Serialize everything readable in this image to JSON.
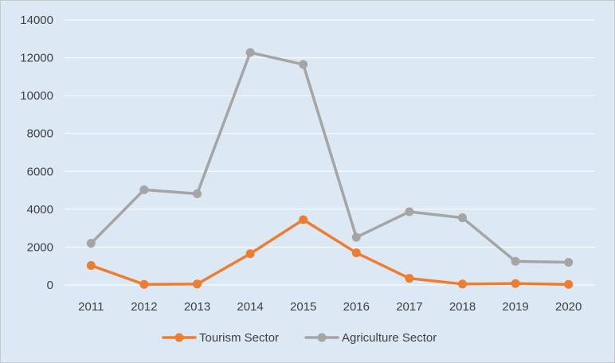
{
  "chart_data": {
    "type": "line",
    "title": "",
    "xlabel": "",
    "ylabel": "",
    "categories": [
      "2011",
      "2012",
      "2013",
      "2014",
      "2015",
      "2016",
      "2017",
      "2018",
      "2019",
      "2020"
    ],
    "ylim": [
      0,
      14000
    ],
    "yticks": [
      0,
      2000,
      4000,
      6000,
      8000,
      10000,
      12000,
      14000
    ],
    "ytick_labels": [
      "0",
      "2000",
      "4000",
      "6000",
      "8000",
      "10000",
      "12000",
      "14000"
    ],
    "grid": "horizontal",
    "legend_position": "bottom",
    "background_color": "#dde8f5",
    "series": [
      {
        "name": "Tourism Sector",
        "color": "#ed7d31",
        "values": [
          1030,
          30,
          50,
          1650,
          3450,
          1700,
          350,
          50,
          80,
          30
        ]
      },
      {
        "name": "Agriculture Sector",
        "color": "#a5a5a5",
        "values": [
          2200,
          5030,
          4820,
          12280,
          11650,
          2520,
          3870,
          3550,
          1250,
          1200
        ]
      }
    ]
  }
}
